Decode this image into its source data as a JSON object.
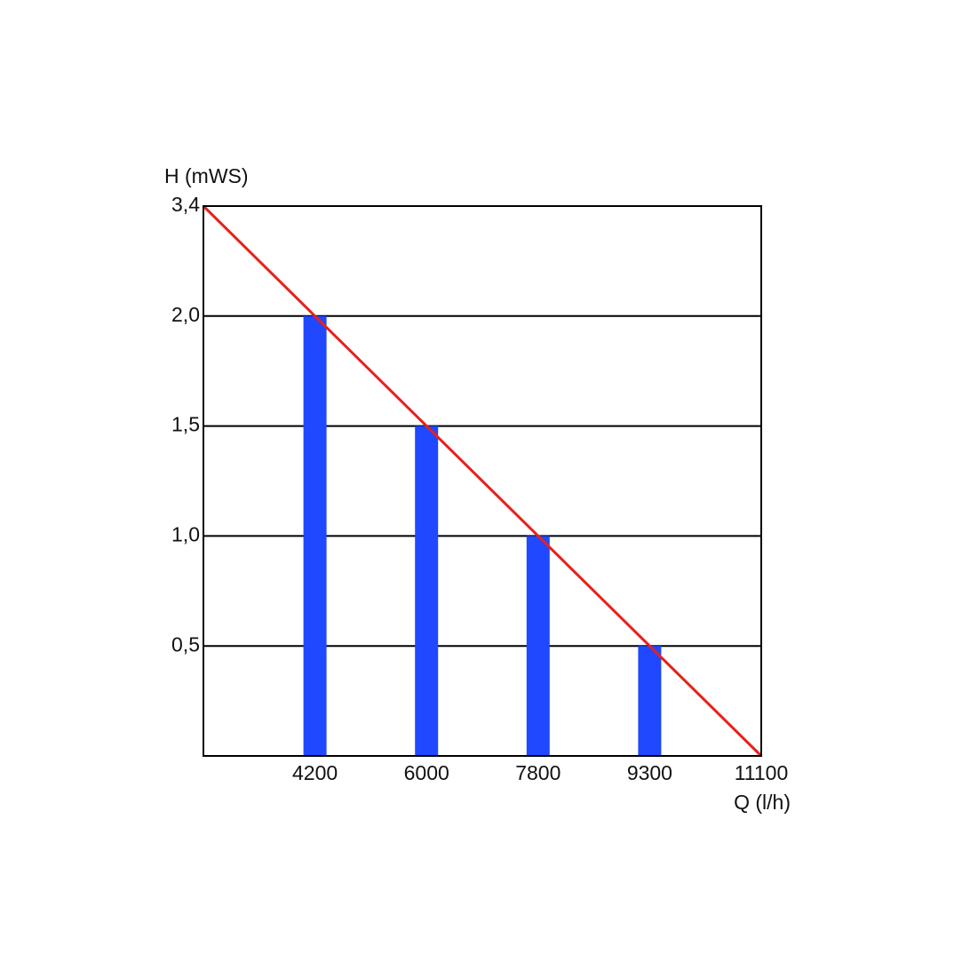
{
  "chart_data": {
    "type": "bar",
    "y_label": "H (mWS)",
    "x_label": "Q (l/h)",
    "x": [
      4200,
      6000,
      7800,
      9300
    ],
    "xlim": [
      0,
      11100
    ],
    "xticks": [
      4200,
      6000,
      7800,
      9300,
      11100
    ],
    "ylim": [
      0,
      3.4
    ],
    "yticks": [
      {
        "value": 0.5,
        "label": "0,5"
      },
      {
        "value": 1,
        "label": "1,0"
      },
      {
        "value": 1.5,
        "label": "1,5"
      },
      {
        "value": 2,
        "label": "2,0"
      },
      {
        "value": 3.4,
        "label": "3,4"
      }
    ],
    "grid": true,
    "series": [
      {
        "type": "bar",
        "color": "#1f48ff",
        "values": [
          2,
          1.5,
          1,
          0.5
        ]
      },
      {
        "type": "line",
        "color": "#e8201a",
        "x": [
          0,
          11100
        ],
        "values": [
          3.4,
          0
        ]
      }
    ]
  }
}
